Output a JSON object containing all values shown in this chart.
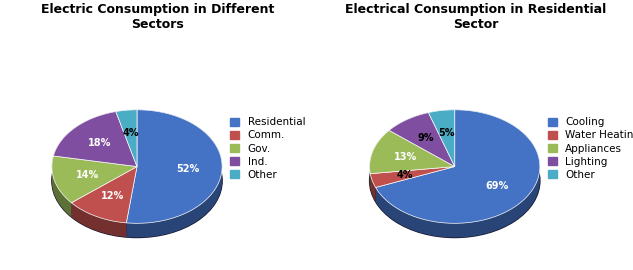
{
  "chart1": {
    "title": "Electric Consumption in Different\nSectors",
    "labels": [
      "Residential",
      "Comm.",
      "Gov.",
      "Ind.",
      "Other"
    ],
    "values": [
      52,
      12,
      14,
      18,
      4
    ],
    "colors": [
      "#4472C4",
      "#C0504D",
      "#9BBB59",
      "#7F4EA0",
      "#4BACC6"
    ],
    "startangle": 90
  },
  "chart2": {
    "title": "Electrical Consumption in Residential\nSector",
    "labels": [
      "Cooling",
      "Water Heating",
      "Appliances",
      "Lighting",
      "Other"
    ],
    "values": [
      69,
      4,
      13,
      9,
      5
    ],
    "colors": [
      "#4472C4",
      "#C0504D",
      "#9BBB59",
      "#7F4EA0",
      "#4BACC6"
    ],
    "startangle": 90
  },
  "bg_color": "#FFFFFF",
  "title_fontsize": 9,
  "legend_fontsize": 7.5,
  "pct_fontsize": 7
}
